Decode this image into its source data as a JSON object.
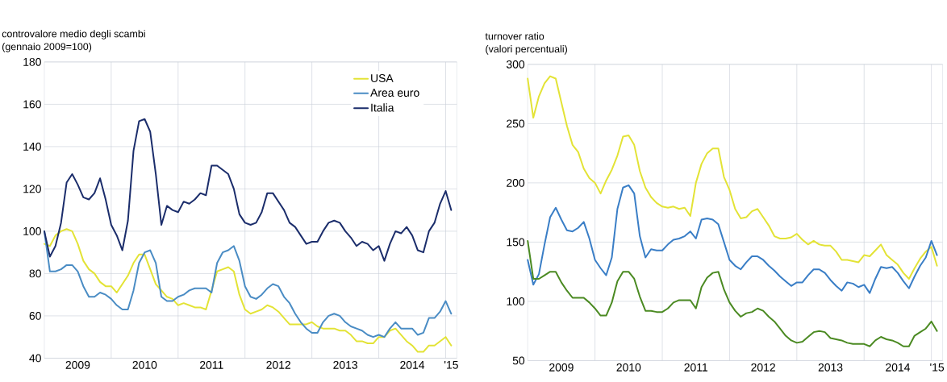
{
  "chart_data": [
    {
      "type": "line",
      "title": "controvalore medio degli scambi",
      "subtitle": "(gennaio 2009=100)",
      "x": [
        "2009-01",
        "2009-02",
        "2009-03",
        "2009-04",
        "2009-05",
        "2009-06",
        "2009-07",
        "2009-08",
        "2009-09",
        "2009-10",
        "2009-11",
        "2009-12",
        "2010-01",
        "2010-02",
        "2010-03",
        "2010-04",
        "2010-05",
        "2010-06",
        "2010-07",
        "2010-08",
        "2010-09",
        "2010-10",
        "2010-11",
        "2010-12",
        "2011-01",
        "2011-02",
        "2011-03",
        "2011-04",
        "2011-05",
        "2011-06",
        "2011-07",
        "2011-08",
        "2011-09",
        "2011-10",
        "2011-11",
        "2011-12",
        "2012-01",
        "2012-02",
        "2012-03",
        "2012-04",
        "2012-05",
        "2012-06",
        "2012-07",
        "2012-08",
        "2012-09",
        "2012-10",
        "2012-11",
        "2012-12",
        "2013-01",
        "2013-02",
        "2013-03",
        "2013-04",
        "2013-05",
        "2013-06",
        "2013-07",
        "2013-08",
        "2013-09",
        "2013-10",
        "2013-11",
        "2013-12",
        "2014-01",
        "2014-02",
        "2014-03",
        "2014-04",
        "2014-05",
        "2014-06",
        "2014-07",
        "2014-08",
        "2014-09",
        "2014-10",
        "2014-11",
        "2014-12",
        "2015-01",
        "2015-02"
      ],
      "series": [
        {
          "name": "USA",
          "color": "#e3e336",
          "values": [
            94,
            93,
            98,
            100,
            101,
            100,
            94,
            86,
            82,
            80,
            76,
            74,
            74,
            71,
            75,
            79,
            85,
            89,
            89,
            82,
            75,
            72,
            69,
            68,
            65,
            66,
            65,
            64,
            64,
            63,
            72,
            81,
            82,
            83,
            81,
            70,
            63,
            61,
            62,
            63,
            65,
            64,
            62,
            59,
            56,
            56,
            56,
            56,
            57,
            55,
            54,
            54,
            54,
            53,
            53,
            51,
            48,
            48,
            47,
            47,
            50,
            50,
            53,
            54,
            51,
            48,
            46,
            43,
            43,
            46,
            46,
            48,
            50,
            46
          ]
        },
        {
          "name": "Area euro",
          "color": "#4a8cc4",
          "values": [
            100,
            81,
            81,
            82,
            84,
            84,
            81,
            74,
            69,
            69,
            71,
            70,
            68,
            65,
            63,
            63,
            72,
            85,
            90,
            91,
            85,
            69,
            67,
            67,
            69,
            70,
            72,
            73,
            73,
            73,
            71,
            85,
            90,
            91,
            93,
            86,
            74,
            69,
            68,
            70,
            73,
            75,
            74,
            69,
            66,
            61,
            57,
            54,
            52,
            52,
            57,
            60,
            61,
            60,
            57,
            55,
            54,
            53,
            51,
            50,
            51,
            50,
            54,
            57,
            54,
            54,
            54,
            51,
            52,
            59,
            59,
            62,
            67,
            61
          ]
        },
        {
          "name": "Italia",
          "color": "#1b2d6b",
          "values": [
            100,
            88,
            93,
            104,
            123,
            127,
            122,
            116,
            115,
            118,
            125,
            115,
            103,
            98,
            91,
            105,
            138,
            152,
            153,
            147,
            127,
            103,
            112,
            110,
            109,
            114,
            113,
            115,
            118,
            117,
            131,
            131,
            129,
            127,
            120,
            108,
            104,
            103,
            104,
            109,
            118,
            118,
            114,
            110,
            104,
            102,
            98,
            94,
            95,
            95,
            100,
            104,
            105,
            104,
            100,
            97,
            93,
            95,
            94,
            91,
            93,
            86,
            94,
            100,
            99,
            102,
            98,
            91,
            90,
            100,
            104,
            113,
            119,
            110
          ]
        }
      ],
      "xlim": [
        "2009-01",
        "2015-03"
      ],
      "xticks": [
        {
          "value": "2010-01",
          "label": null
        },
        {
          "value": "2011-01",
          "label": null
        },
        {
          "value": "2012-01",
          "label": null
        },
        {
          "value": "2013-01",
          "label": null
        },
        {
          "value": "2014-01",
          "label": null
        },
        {
          "value": "2015-01",
          "label": null
        },
        {
          "value": "2009-07",
          "label": "2009"
        },
        {
          "value": "2010-07",
          "label": "2010"
        },
        {
          "value": "2011-07",
          "label": "2011"
        },
        {
          "value": "2012-07",
          "label": "2012"
        },
        {
          "value": "2013-07",
          "label": "2013"
        },
        {
          "value": "2014-07",
          "label": "2014"
        },
        {
          "value": "2015-02",
          "label": "'15"
        }
      ],
      "ylim": [
        40,
        180
      ],
      "yticks": [
        40,
        60,
        80,
        100,
        120,
        140,
        160,
        180
      ],
      "grid": true,
      "legend": "top right"
    },
    {
      "type": "line",
      "title": "turnover ratio",
      "subtitle": "(valori percentuali)",
      "x": [
        "2009-01",
        "2009-02",
        "2009-03",
        "2009-04",
        "2009-05",
        "2009-06",
        "2009-07",
        "2009-08",
        "2009-09",
        "2009-10",
        "2009-11",
        "2009-12",
        "2010-01",
        "2010-02",
        "2010-03",
        "2010-04",
        "2010-05",
        "2010-06",
        "2010-07",
        "2010-08",
        "2010-09",
        "2010-10",
        "2010-11",
        "2010-12",
        "2011-01",
        "2011-02",
        "2011-03",
        "2011-04",
        "2011-05",
        "2011-06",
        "2011-07",
        "2011-08",
        "2011-09",
        "2011-10",
        "2011-11",
        "2011-12",
        "2012-01",
        "2012-02",
        "2012-03",
        "2012-04",
        "2012-05",
        "2012-06",
        "2012-07",
        "2012-08",
        "2012-09",
        "2012-10",
        "2012-11",
        "2012-12",
        "2013-01",
        "2013-02",
        "2013-03",
        "2013-04",
        "2013-05",
        "2013-06",
        "2013-07",
        "2013-08",
        "2013-09",
        "2013-10",
        "2013-11",
        "2013-12",
        "2014-01",
        "2014-02",
        "2014-03",
        "2014-04",
        "2014-05",
        "2014-06",
        "2014-07",
        "2014-08",
        "2014-09",
        "2014-10",
        "2014-11",
        "2014-12",
        "2015-01",
        "2015-02"
      ],
      "series": [
        {
          "color": "#e3e336",
          "values": [
            288,
            255,
            273,
            284,
            290,
            288,
            268,
            248,
            232,
            226,
            212,
            204,
            200,
            191,
            202,
            211,
            223,
            239,
            240,
            232,
            210,
            196,
            188,
            183,
            180,
            179,
            180,
            178,
            179,
            172,
            200,
            216,
            225,
            229,
            229,
            205,
            194,
            178,
            170,
            171,
            176,
            178,
            171,
            164,
            155,
            153,
            153,
            154,
            157,
            152,
            148,
            151,
            148,
            147,
            147,
            142,
            135,
            135,
            134,
            133,
            139,
            138,
            143,
            148,
            139,
            135,
            131,
            124,
            119,
            128,
            136,
            142,
            146,
            130
          ]
        },
        {
          "color": "#3a7ec6",
          "values": [
            135,
            114,
            123,
            148,
            171,
            179,
            169,
            160,
            159,
            162,
            167,
            153,
            135,
            128,
            122,
            137,
            178,
            196,
            198,
            191,
            155,
            137,
            144,
            143,
            143,
            148,
            152,
            153,
            155,
            159,
            153,
            169,
            170,
            169,
            165,
            150,
            135,
            130,
            127,
            133,
            138,
            138,
            135,
            130,
            126,
            121,
            117,
            113,
            116,
            116,
            122,
            127,
            127,
            124,
            118,
            113,
            109,
            116,
            115,
            112,
            114,
            107,
            119,
            129,
            128,
            129,
            124,
            117,
            111,
            121,
            130,
            137,
            151,
            139
          ]
        },
        {
          "color": "#4b8a22",
          "values": [
            151,
            119,
            119,
            122,
            125,
            125,
            116,
            109,
            103,
            103,
            103,
            99,
            94,
            88,
            88,
            99,
            117,
            125,
            125,
            119,
            104,
            92,
            92,
            91,
            91,
            94,
            99,
            101,
            101,
            101,
            94,
            112,
            120,
            124,
            125,
            110,
            99,
            92,
            87,
            90,
            91,
            94,
            92,
            87,
            83,
            77,
            71,
            67,
            65,
            66,
            70,
            74,
            75,
            74,
            69,
            68,
            67,
            65,
            64,
            64,
            64,
            62,
            67,
            70,
            68,
            67,
            65,
            62,
            62,
            71,
            74,
            77,
            83,
            75
          ]
        }
      ],
      "xlim": [
        "2009-01",
        "2015-03"
      ],
      "xticks": [
        {
          "value": "2010-01",
          "label": null
        },
        {
          "value": "2011-01",
          "label": null
        },
        {
          "value": "2012-01",
          "label": null
        },
        {
          "value": "2013-01",
          "label": null
        },
        {
          "value": "2014-01",
          "label": null
        },
        {
          "value": "2015-01",
          "label": null
        },
        {
          "value": "2009-07",
          "label": "2009"
        },
        {
          "value": "2010-07",
          "label": "2010"
        },
        {
          "value": "2011-07",
          "label": "2011"
        },
        {
          "value": "2012-07",
          "label": "2012"
        },
        {
          "value": "2013-07",
          "label": "2013"
        },
        {
          "value": "2014-07",
          "label": "2014"
        },
        {
          "value": "2015-02",
          "label": "'15"
        }
      ],
      "ylim": [
        50,
        300
      ],
      "yticks": [
        50,
        100,
        150,
        200,
        250,
        300
      ],
      "grid": true
    }
  ]
}
